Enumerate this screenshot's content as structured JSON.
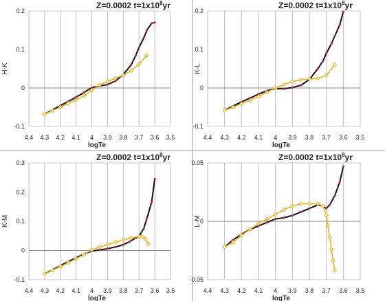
{
  "chart_data": [
    {
      "type": "line",
      "title": "Z=0.0002  t=1x10",
      "title_sup": "8",
      "title_tail": "yr",
      "xlabel": "logTe",
      "ylabel": "H-K",
      "xlim": [
        4.4,
        3.5
      ],
      "ylim": [
        -0.1,
        0.2
      ],
      "xticks": [
        4.4,
        4.3,
        4.2,
        4.1,
        4.0,
        3.9,
        3.8,
        3.7,
        3.6,
        3.5
      ],
      "xtick_labels": [
        "4.4",
        "4.3",
        "4.2",
        "4.1",
        "4",
        "3.9",
        "3.8",
        "3.7",
        "3.6",
        "3.5"
      ],
      "yticks": [
        -0.1,
        0,
        0.1,
        0.2
      ],
      "ytick_labels": [
        "-0.1",
        "0",
        "0.1",
        "0.2"
      ],
      "grid": "vertical",
      "series": [
        {
          "color": "#111111",
          "marker": "red-dots",
          "x": [
            4.3,
            4.25,
            4.2,
            4.15,
            4.1,
            4.05,
            4.0,
            3.95,
            3.9,
            3.85,
            3.8,
            3.75,
            3.72,
            3.7,
            3.67,
            3.65,
            3.62,
            3.6
          ],
          "y": [
            -0.068,
            -0.057,
            -0.046,
            -0.035,
            -0.024,
            -0.012,
            0.001,
            0.005,
            0.009,
            0.018,
            0.035,
            0.06,
            0.085,
            0.105,
            0.13,
            0.15,
            0.168,
            0.17
          ]
        },
        {
          "color": "#e3b21f",
          "marker": "open-diamond",
          "x": [
            4.3,
            4.25,
            4.2,
            4.15,
            4.1,
            4.05,
            4.0,
            3.95,
            3.9,
            3.85,
            3.8,
            3.75,
            3.7,
            3.65
          ],
          "y": [
            -0.068,
            -0.059,
            -0.05,
            -0.04,
            -0.031,
            -0.02,
            -0.006,
            0.008,
            0.017,
            0.025,
            0.033,
            0.045,
            0.062,
            0.085
          ]
        }
      ]
    },
    {
      "type": "line",
      "title": "Z=0.0002  t=1x10",
      "title_sup": "8",
      "title_tail": "yr",
      "xlabel": "logTe",
      "ylabel": "K-L",
      "xlim": [
        4.4,
        3.5
      ],
      "ylim": [
        -0.1,
        0.2
      ],
      "xticks": [
        4.4,
        4.3,
        4.2,
        4.1,
        4.0,
        3.9,
        3.8,
        3.7,
        3.6,
        3.5
      ],
      "xtick_labels": [
        "4.4",
        "4.3",
        "4.2",
        "4.1",
        "4",
        "3.9",
        "3.8",
        "3.7",
        "3.6",
        "3.5"
      ],
      "yticks": [
        -0.1,
        0,
        0.1,
        0.2
      ],
      "ytick_labels": [
        "-0.1",
        "0",
        "0.1",
        "0.2"
      ],
      "grid": "vertical",
      "series": [
        {
          "color": "#111111",
          "marker": "red-dots",
          "x": [
            4.3,
            4.25,
            4.2,
            4.15,
            4.1,
            4.05,
            4.0,
            3.95,
            3.9,
            3.85,
            3.8,
            3.75,
            3.72,
            3.7,
            3.67,
            3.65,
            3.62,
            3.6
          ],
          "y": [
            -0.058,
            -0.047,
            -0.036,
            -0.026,
            -0.016,
            -0.007,
            -0.002,
            -0.002,
            0.001,
            0.007,
            0.022,
            0.05,
            0.07,
            0.09,
            0.115,
            0.135,
            0.165,
            0.198
          ]
        },
        {
          "color": "#e3b21f",
          "marker": "open-diamond",
          "x": [
            4.3,
            4.25,
            4.2,
            4.15,
            4.1,
            4.05,
            4.0,
            3.95,
            3.9,
            3.85,
            3.8,
            3.75,
            3.7,
            3.65
          ],
          "y": [
            -0.058,
            -0.05,
            -0.041,
            -0.032,
            -0.022,
            -0.011,
            0.0,
            0.009,
            0.016,
            0.021,
            0.023,
            0.025,
            0.033,
            0.06
          ]
        }
      ]
    },
    {
      "type": "line",
      "title": "Z=0.0002  t=1x10",
      "title_sup": "8",
      "title_tail": "yr",
      "xlabel": "logTe",
      "ylabel": "K-M",
      "xlim": [
        4.4,
        3.5
      ],
      "ylim": [
        -0.1,
        0.3
      ],
      "xticks": [
        4.4,
        4.3,
        4.2,
        4.1,
        4.0,
        3.9,
        3.8,
        3.7,
        3.6,
        3.5
      ],
      "xtick_labels": [
        "4.4",
        "4.3",
        "4.2",
        "4.1",
        "4",
        "3.9",
        "3.8",
        "3.7",
        "3.6",
        "3.5"
      ],
      "yticks": [
        -0.1,
        0,
        0.1,
        0.2,
        0.3
      ],
      "ytick_labels": [
        "-0.1",
        "0",
        "0.1",
        "0.2",
        "0.3"
      ],
      "grid": "vertical",
      "series": [
        {
          "color": "#111111",
          "marker": "red-dots",
          "x": [
            4.3,
            4.25,
            4.2,
            4.15,
            4.1,
            4.05,
            4.0,
            3.95,
            3.9,
            3.85,
            3.8,
            3.76,
            3.72,
            3.7,
            3.67,
            3.65,
            3.62,
            3.6
          ],
          "y": [
            -0.08,
            -0.066,
            -0.052,
            -0.038,
            -0.025,
            -0.012,
            -0.002,
            0.002,
            0.006,
            0.012,
            0.02,
            0.03,
            0.043,
            0.048,
            0.075,
            0.11,
            0.165,
            0.245
          ]
        },
        {
          "color": "#e3b21f",
          "marker": "open-diamond",
          "x": [
            4.3,
            4.25,
            4.2,
            4.15,
            4.1,
            4.05,
            4.0,
            3.95,
            3.9,
            3.85,
            3.8,
            3.75,
            3.7,
            3.68,
            3.66,
            3.64
          ],
          "y": [
            -0.08,
            -0.068,
            -0.055,
            -0.042,
            -0.028,
            -0.014,
            0.002,
            0.012,
            0.02,
            0.028,
            0.036,
            0.043,
            0.048,
            0.047,
            0.04,
            0.022
          ]
        }
      ]
    },
    {
      "type": "line",
      "title": "Z=0.0002  t=1x10",
      "title_sup": "8",
      "title_tail": "yr",
      "xlabel": "logTe",
      "ylabel": "L-M",
      "xlim": [
        4.4,
        3.5
      ],
      "ylim": [
        -0.05,
        0.05
      ],
      "xticks": [
        4.4,
        4.3,
        4.2,
        4.1,
        4.0,
        3.9,
        3.8,
        3.7,
        3.6,
        3.5
      ],
      "xtick_labels": [
        "4.4",
        "4.3",
        "4.2",
        "4.1",
        "4",
        "3.9",
        "3.8",
        "3.7",
        "3.6",
        "3.5"
      ],
      "yticks": [
        -0.05,
        0,
        0.05
      ],
      "ytick_labels": [
        "-0.05",
        "0",
        "0.05"
      ],
      "grid": "vertical",
      "series": [
        {
          "color": "#111111",
          "marker": "red-dots",
          "x": [
            4.3,
            4.25,
            4.2,
            4.15,
            4.1,
            4.05,
            4.0,
            3.95,
            3.9,
            3.85,
            3.8,
            3.75,
            3.72,
            3.7,
            3.68,
            3.65,
            3.62,
            3.6
          ],
          "y": [
            -0.022,
            -0.016,
            -0.011,
            -0.007,
            -0.004,
            -0.001,
            0.002,
            0.003,
            0.005,
            0.008,
            0.011,
            0.014,
            0.013,
            0.011,
            0.014,
            0.022,
            0.034,
            0.047
          ]
        },
        {
          "color": "#e3b21f",
          "marker": "open-diamond",
          "x": [
            4.3,
            4.25,
            4.2,
            4.15,
            4.1,
            4.05,
            4.0,
            3.95,
            3.9,
            3.85,
            3.8,
            3.75,
            3.72,
            3.7,
            3.69,
            3.68,
            3.67,
            3.66,
            3.65
          ],
          "y": [
            -0.022,
            -0.018,
            -0.012,
            -0.007,
            -0.002,
            0.002,
            0.006,
            0.01,
            0.013,
            0.015,
            0.015,
            0.015,
            0.013,
            0.005,
            -0.004,
            -0.014,
            -0.024,
            -0.034,
            -0.042
          ]
        }
      ]
    }
  ]
}
